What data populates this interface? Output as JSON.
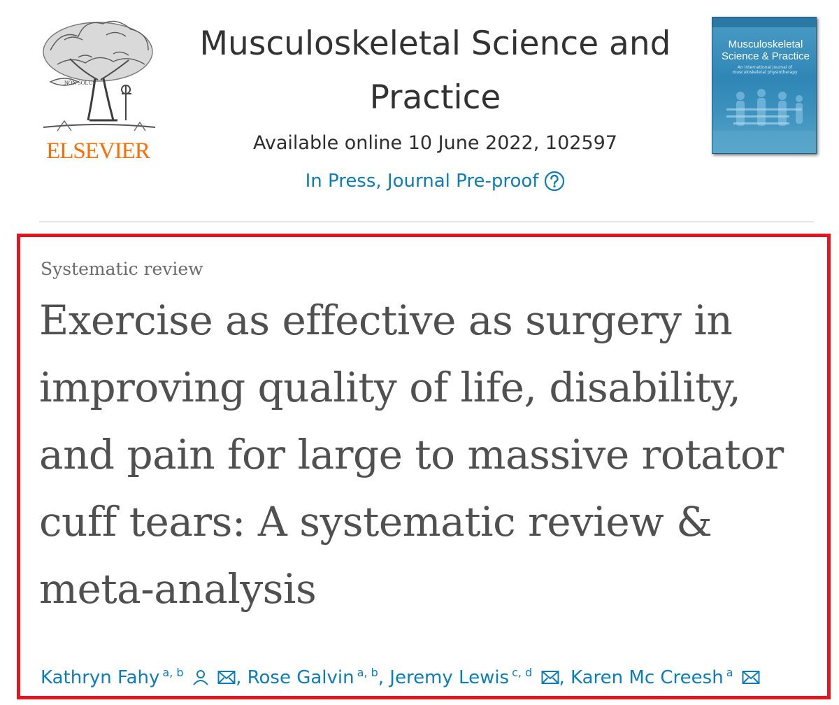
{
  "publisher": {
    "name": "ELSEVIER",
    "logo_motto": "NON SOLUS",
    "logo_icon": "elsevier-tree-icon",
    "brand_color": "#ff6c00"
  },
  "journal": {
    "title": "Musculoskeletal Science and Practice",
    "availability": "Available online 10 June 2022, 102597",
    "status_link": "In Press, Journal Pre-proof",
    "help_icon": "question-circle-icon",
    "link_color": "#0c7dbb",
    "cover": {
      "title": "Musculoskeletal Science & Practice",
      "subtitle": "An international journal of musculoskeletal physiotherapy"
    }
  },
  "article": {
    "type": "Systematic review",
    "title": "Exercise as effective as surgery in improving quality of life, disability, and pain for large to massive rotator cuff tears: A systematic review & meta-analysis",
    "highlight_color": "#e3161f",
    "authors": [
      {
        "name": "Kathryn Fahy",
        "affiliations": "a, b",
        "icons": [
          "person-icon",
          "envelope-icon"
        ]
      },
      {
        "name": "Rose Galvin",
        "affiliations": "a, b",
        "icons": []
      },
      {
        "name": "Jeremy Lewis",
        "affiliations": "c, d",
        "icons": [
          "envelope-icon"
        ]
      },
      {
        "name": "Karen Mc Creesh",
        "affiliations": "a",
        "icons": [
          "envelope-icon"
        ]
      }
    ]
  }
}
